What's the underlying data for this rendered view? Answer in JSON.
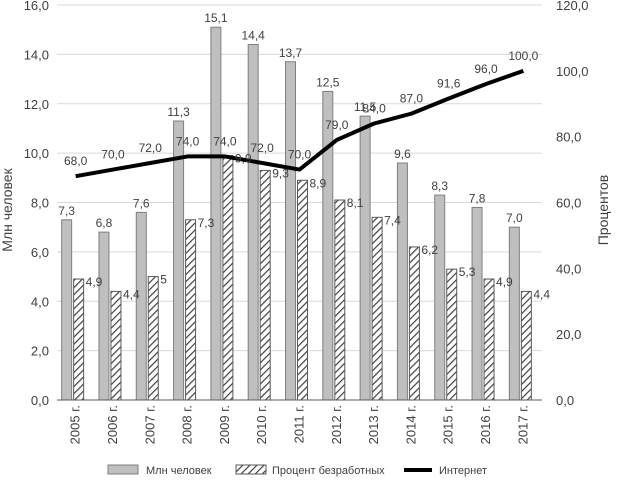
{
  "chart_data": {
    "type": "bar",
    "categories": [
      "2005 г.",
      "2006 г.",
      "2007 г.",
      "2008 г.",
      "2009 г.",
      "2010 г.",
      "2011 г.",
      "2012 г.",
      "2013 г.",
      "2014 г.",
      "2015 г.",
      "2016 г.",
      "2017 г."
    ],
    "series": [
      {
        "name": "Млн человек",
        "kind": "bar",
        "axis": "left",
        "color": "#bfbfbf",
        "values": [
          7.3,
          6.8,
          7.6,
          11.3,
          15.1,
          14.4,
          13.7,
          12.5,
          11.5,
          9.6,
          8.3,
          7.8,
          7.0
        ],
        "labels": [
          "7,3",
          "6,8",
          "7,6",
          "11,3",
          "15,1",
          "14,4",
          "13,7",
          "12,5",
          "11,5",
          "9,6",
          "8,3",
          "7,8",
          "7,0"
        ]
      },
      {
        "name": "Процент безработных",
        "kind": "bar",
        "axis": "left",
        "pattern": "diagonal-hatch",
        "values": [
          4.9,
          4.4,
          5.0,
          7.3,
          9.9,
          9.3,
          8.9,
          8.1,
          7.4,
          6.2,
          5.3,
          4.9,
          4.4
        ],
        "labels": [
          "4,9",
          "4,4",
          "5",
          "7,3",
          "9,9",
          "9,3",
          "8,9",
          "8,1",
          "7,4",
          "6,2",
          "5,3",
          "4,9",
          "4,4"
        ]
      },
      {
        "name": "Интернет",
        "kind": "line",
        "axis": "right",
        "color": "#000000",
        "values": [
          68.0,
          70.0,
          72.0,
          74.0,
          74.0,
          72.0,
          70.0,
          79.0,
          84.0,
          87.0,
          91.6,
          96.0,
          100.0
        ],
        "labels": [
          "68,0",
          "70,0",
          "72,0",
          "74,0",
          "74,0",
          "72,0",
          "70,0",
          "79,0",
          "84,0",
          "87,0",
          "91,6",
          "96,0",
          "100,0"
        ]
      }
    ],
    "ylabel": "Млн человек",
    "y2label": "Процентов",
    "ylim": [
      0,
      16
    ],
    "y2lim": [
      0,
      120
    ],
    "yticks": [
      0,
      2,
      4,
      6,
      8,
      10,
      12,
      14,
      16
    ],
    "ytick_labels": [
      "0,0",
      "2,0",
      "4,0",
      "6,0",
      "8,0",
      "10,0",
      "12,0",
      "14,0",
      "16,0"
    ],
    "y2ticks": [
      0,
      20,
      40,
      60,
      80,
      100,
      120
    ],
    "y2tick_labels": [
      "0,0",
      "20,0",
      "40,0",
      "60,0",
      "80,0",
      "100,0",
      "120,0"
    ],
    "grid": true,
    "legend": "bottom"
  }
}
